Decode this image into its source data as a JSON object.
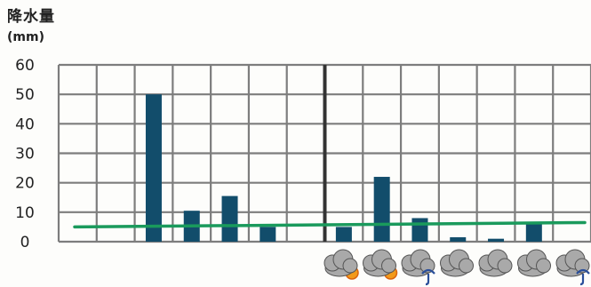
{
  "chart_data": {
    "type": "bar",
    "title": "",
    "ylabel": "降水量",
    "yunit": "(mm)",
    "xlabel": "",
    "ylim": [
      0,
      60
    ],
    "yticks": [
      "0",
      "10",
      "20",
      "30",
      "40",
      "50",
      "60"
    ],
    "grid": true,
    "categories": 14,
    "values": [
      null,
      null,
      50,
      10.5,
      15.5,
      5,
      null,
      5,
      22,
      8,
      1.5,
      1,
      6.5,
      null
    ],
    "reference_line": {
      "from": 5,
      "to": 6.5,
      "color": "#1a9a5c"
    },
    "divider_after_column": 7,
    "colors": {
      "bar": "#124d6b",
      "grid": "#7d7d7d",
      "divider": "#333333",
      "line": "#1a9a5c"
    },
    "weather_icons": [
      "cloud-sun-icon",
      "cloud-sun-icon",
      "cloud-umbrella-icon",
      "cloud-icon",
      "cloud-icon",
      "cloud-icon",
      "cloud-umbrella-icon"
    ]
  }
}
